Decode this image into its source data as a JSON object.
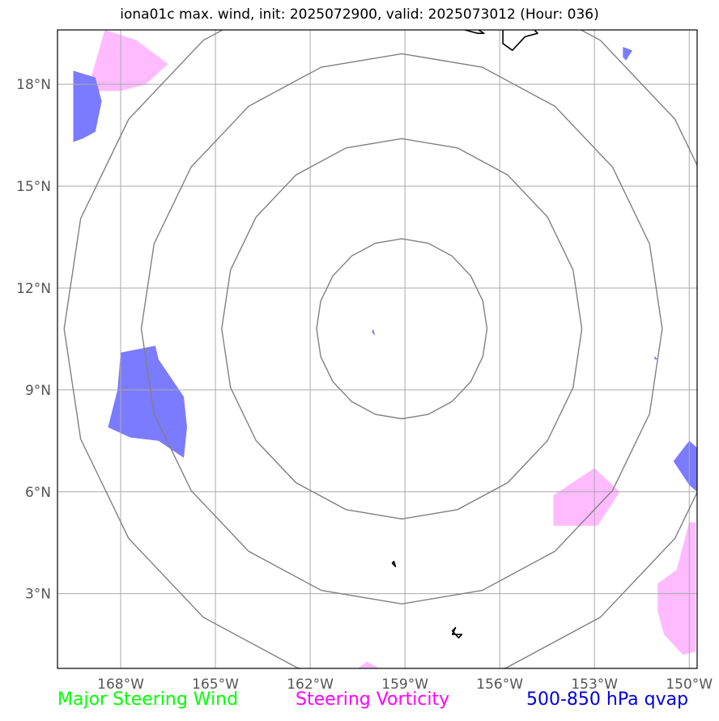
{
  "title": "iona01c max. wind, init: 2025072900, valid: 2025073012 (Hour: 036)",
  "map": {
    "lon_range": [
      -170.0,
      -149.75
    ],
    "lat_range": [
      0.8,
      19.6
    ],
    "lon_ticks": [
      -168,
      -165,
      -162,
      -159,
      -156,
      -153,
      -150
    ],
    "lon_tick_labels": [
      "168°W",
      "165°W",
      "162°W",
      "159°W",
      "156°W",
      "153°W",
      "150°W"
    ],
    "lat_ticks": [
      3,
      6,
      9,
      12,
      15,
      18
    ],
    "lat_tick_labels": [
      "3°N",
      "6°N",
      "9°N",
      "12°N",
      "15°N",
      "18°N"
    ],
    "grid": true,
    "range_rings": {
      "center": [
        -159.1,
        10.8
      ],
      "lat_radii_deg": [
        2.65,
        5.6,
        8.1,
        10.5
      ],
      "color": "#808080"
    },
    "layers": {
      "vorticity": {
        "color": "#ffbbff",
        "polygons": [
          [
            [
              -169.0,
              18.0
            ],
            [
              -168.5,
              19.6
            ],
            [
              -167.5,
              19.3
            ],
            [
              -166.5,
              18.6
            ],
            [
              -167.2,
              18.0
            ],
            [
              -168.0,
              17.8
            ],
            [
              -169.1,
              17.8
            ]
          ],
          [
            [
              -154.3,
              5.9
            ],
            [
              -153.0,
              6.7
            ],
            [
              -152.2,
              6.0
            ],
            [
              -152.9,
              5.0
            ],
            [
              -154.3,
              5.0
            ]
          ],
          [
            [
              -150.4,
              3.7
            ],
            [
              -150.0,
              5.1
            ],
            [
              -149.8,
              5.1
            ],
            [
              -149.8,
              1.3
            ],
            [
              -150.2,
              1.2
            ],
            [
              -150.8,
              1.8
            ],
            [
              -151.0,
              2.5
            ],
            [
              -151.0,
              3.3
            ]
          ],
          [
            [
              -160.5,
              0.8
            ],
            [
              -160.2,
              1.0
            ],
            [
              -159.8,
              0.8
            ]
          ]
        ]
      },
      "qvap": {
        "color": "#7b7bff",
        "polygons": [
          [
            [
              -169.5,
              16.3
            ],
            [
              -169.5,
              18.4
            ],
            [
              -168.8,
              18.2
            ],
            [
              -168.6,
              17.5
            ],
            [
              -168.8,
              16.6
            ],
            [
              -169.2,
              16.4
            ]
          ],
          [
            [
              -168.0,
              10.1
            ],
            [
              -166.9,
              10.3
            ],
            [
              -166.8,
              9.9
            ],
            [
              -166.0,
              8.8
            ],
            [
              -165.9,
              7.9
            ],
            [
              -166.0,
              7.0
            ],
            [
              -166.8,
              7.5
            ],
            [
              -167.7,
              7.6
            ],
            [
              -168.4,
              7.9
            ],
            [
              -168.1,
              9.0
            ]
          ],
          [
            [
              -150.5,
              6.9
            ],
            [
              -150.0,
              7.5
            ],
            [
              -149.75,
              7.3
            ],
            [
              -149.75,
              6.0
            ],
            [
              -150.0,
              6.2
            ]
          ],
          [
            [
              -152.1,
              19.1
            ],
            [
              -151.8,
              19.0
            ],
            [
              -152.0,
              18.7
            ],
            [
              -152.1,
              18.8
            ]
          ],
          [
            [
              -160.0,
              10.8
            ],
            [
              -159.95,
              10.6
            ],
            [
              -160.05,
              10.7
            ]
          ],
          [
            [
              -151.1,
              10.0
            ],
            [
              -151.0,
              9.9
            ],
            [
              -151.1,
              9.9
            ]
          ]
        ]
      },
      "coastlines": [
        [
          [
            -157.1,
            19.6
          ],
          [
            -157.0,
            19.8
          ],
          [
            -156.5,
            19.5
          ],
          [
            -156.7,
            19.5
          ]
        ],
        [
          [
            -155.9,
            19.8
          ],
          [
            -155.9,
            19.2
          ],
          [
            -155.6,
            19.0
          ],
          [
            -155.2,
            19.4
          ],
          [
            -154.8,
            19.5
          ],
          [
            -155.1,
            19.8
          ],
          [
            -155.5,
            20.0
          ],
          [
            -155.9,
            20.1
          ]
        ],
        [
          [
            -159.4,
            3.9
          ],
          [
            -159.3,
            3.8
          ],
          [
            -159.35,
            3.95
          ]
        ],
        [
          [
            -157.5,
            1.9
          ],
          [
            -157.3,
            1.7
          ],
          [
            -157.2,
            1.8
          ],
          [
            -157.5,
            1.8
          ],
          [
            -157.4,
            2.0
          ]
        ]
      ]
    }
  },
  "legend": {
    "items": [
      {
        "label": "Major Steering Wind",
        "color": "#00ff00"
      },
      {
        "label": "Steering Vorticity",
        "color": "#ff00ff"
      },
      {
        "label": "500-850 hPa qvap",
        "color": "#0000dd"
      }
    ]
  }
}
